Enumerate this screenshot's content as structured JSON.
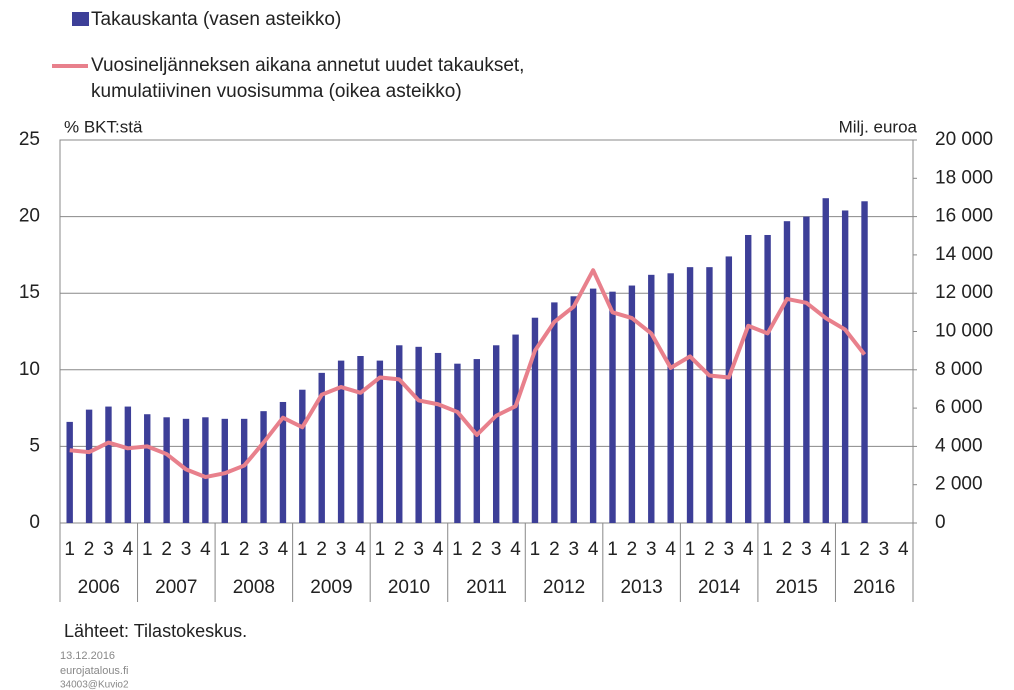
{
  "chart_data": {
    "type": "bar",
    "y_label": "% BKT:stä",
    "y2_label": "Milj. euroa",
    "source": "Lähteet: Tilastokeskus.",
    "footer": [
      "13.12.2016",
      "eurojatalous.fi",
      "34003@Kuvio2"
    ],
    "categories": [
      "1",
      "2",
      "3",
      "4",
      "1",
      "2",
      "3",
      "4",
      "1",
      "2",
      "3",
      "4",
      "1",
      "2",
      "3",
      "4",
      "1",
      "2",
      "3",
      "4",
      "1",
      "2",
      "3",
      "4",
      "1",
      "2",
      "3",
      "4",
      "1",
      "2",
      "3",
      "4",
      "1",
      "2",
      "3",
      "4",
      "1",
      "2",
      "3",
      "4",
      "1",
      "2",
      "3",
      "4"
    ],
    "years": [
      "2006",
      "2007",
      "2008",
      "2009",
      "2010",
      "2011",
      "2012",
      "2013",
      "2014",
      "2015",
      "2016"
    ],
    "series": [
      {
        "name": "Takauskanta (vasen asteikko)",
        "type": "bar",
        "color": "#3d3f98",
        "values": [
          6.6,
          7.4,
          7.6,
          7.6,
          7.1,
          6.9,
          6.8,
          6.9,
          6.8,
          6.8,
          7.3,
          7.9,
          8.7,
          9.8,
          10.6,
          10.9,
          10.6,
          11.6,
          11.5,
          11.1,
          10.4,
          10.7,
          11.6,
          12.3,
          13.4,
          14.4,
          14.8,
          15.3,
          15.1,
          15.5,
          16.2,
          16.3,
          16.7,
          16.7,
          17.4,
          18.8,
          18.8,
          19.7,
          20.0,
          21.2,
          20.4,
          21.0,
          null,
          null
        ]
      },
      {
        "name": "Vuosineljänneksen aikana annetut uudet takaukset, kumulatiivinen vuosisumma (oikea asteikko)",
        "type": "line",
        "axis": "y2",
        "color": "#e8808c",
        "values": [
          3800,
          3700,
          4200,
          3900,
          4000,
          3600,
          2800,
          2400,
          2600,
          3000,
          4200,
          5500,
          5000,
          6700,
          7100,
          6800,
          7600,
          7500,
          6400,
          6200,
          5800,
          4600,
          5600,
          6100,
          9000,
          10500,
          11300,
          13200,
          11000,
          10700,
          9900,
          8100,
          8700,
          7700,
          7600,
          10300,
          9900,
          11700,
          11500,
          10700,
          10100,
          8800,
          null,
          null
        ]
      }
    ],
    "ylim": [
      0,
      25
    ],
    "yticks": [
      0,
      5,
      10,
      15,
      20,
      25
    ],
    "y2lim": [
      0,
      20000
    ],
    "y2ticks": [
      0,
      {
        "value": 2000,
        "label": "2 000"
      },
      {
        "value": 4000,
        "label": "4 000"
      },
      {
        "value": 6000,
        "label": "6 000"
      },
      {
        "value": 8000,
        "label": "8 000"
      },
      {
        "value": 10000,
        "label": "10 000"
      },
      {
        "value": 12000,
        "label": "12 000"
      },
      {
        "value": 14000,
        "label": "14 000"
      },
      {
        "value": 16000,
        "label": "16 000"
      },
      {
        "value": 18000,
        "label": "18 000"
      },
      {
        "value": 20000,
        "label": "20 000"
      }
    ],
    "grid": true
  }
}
